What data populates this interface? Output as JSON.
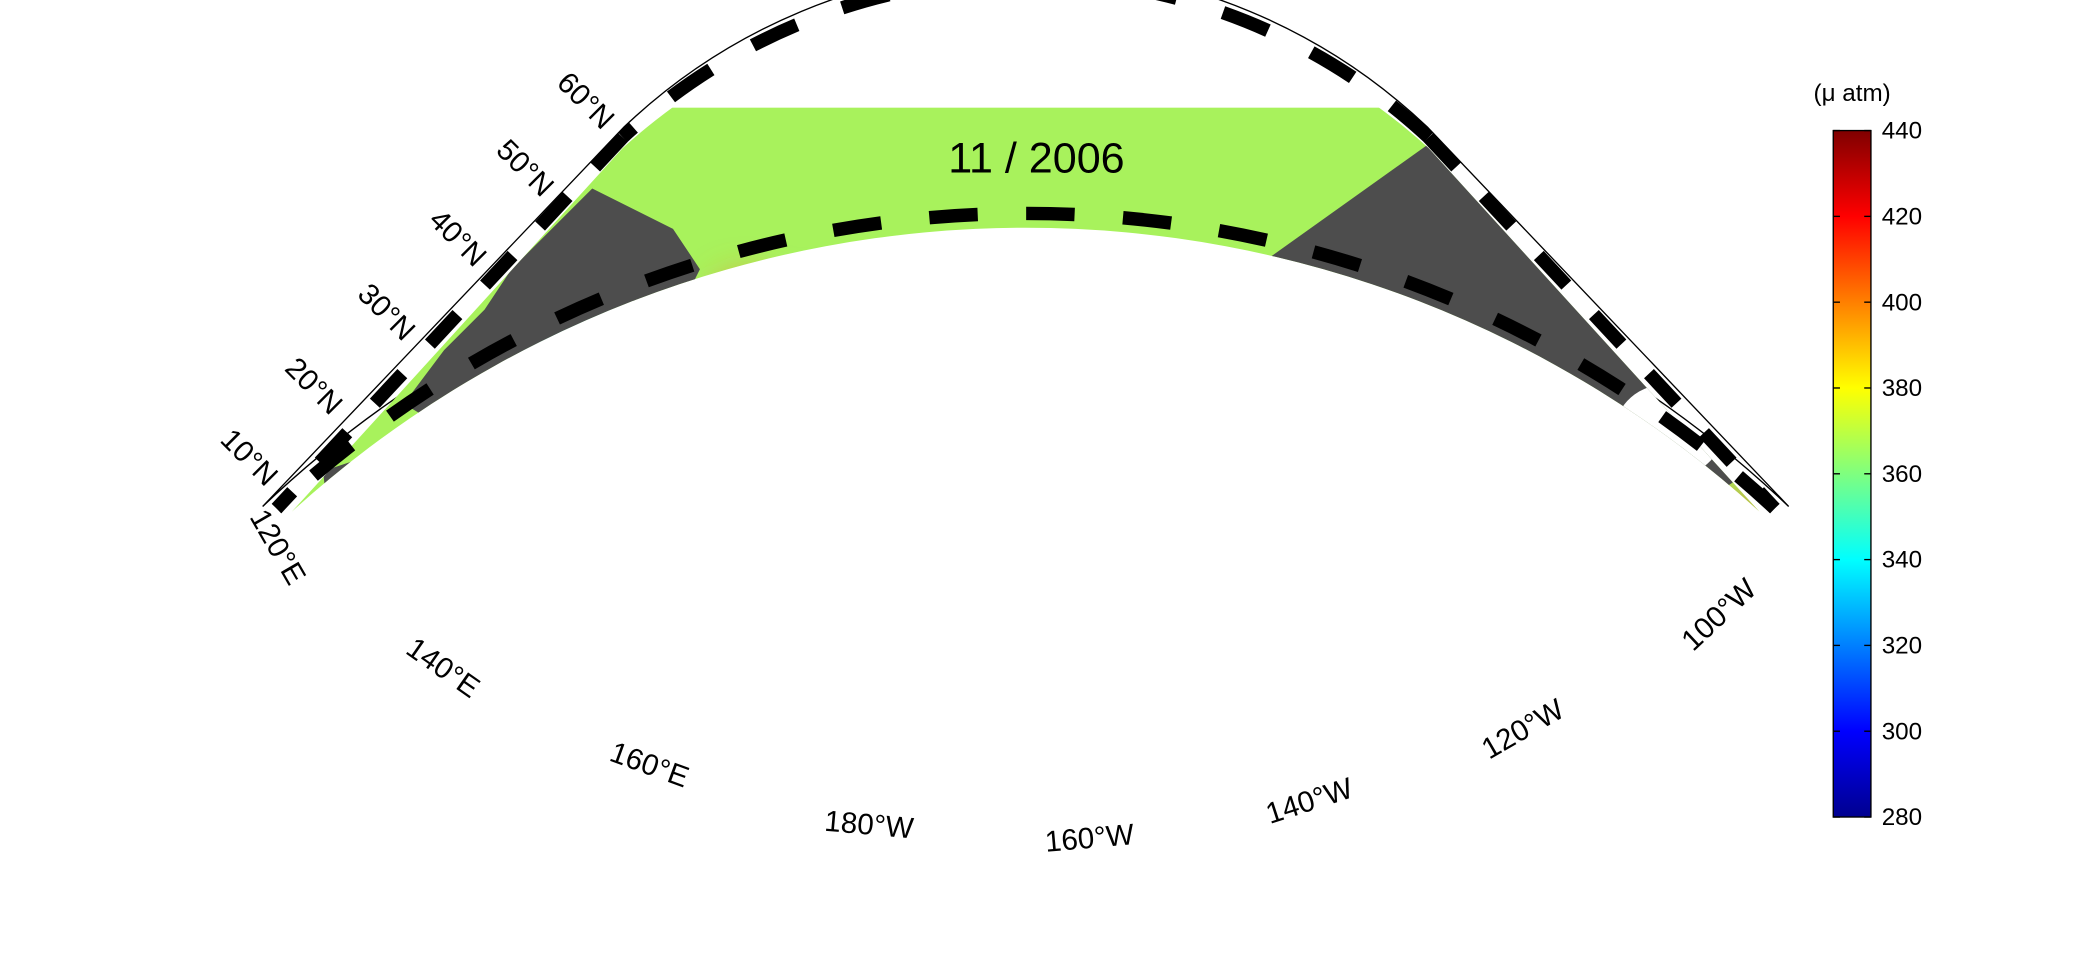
{
  "title": "11 / 2006",
  "colorbar": {
    "label": "(μ atm)",
    "lim": [
      280,
      440
    ],
    "ticks": [
      280,
      300,
      320,
      340,
      360,
      380,
      400,
      420,
      440
    ]
  },
  "latitude_labels": [
    "60°N",
    "50°N",
    "40°N",
    "30°N",
    "20°N",
    "10°N"
  ],
  "longitude_labels": [
    "120°E",
    "140°E",
    "160°E",
    "180°W",
    "160°W",
    "140°W",
    "120°W",
    "100°W"
  ]
}
